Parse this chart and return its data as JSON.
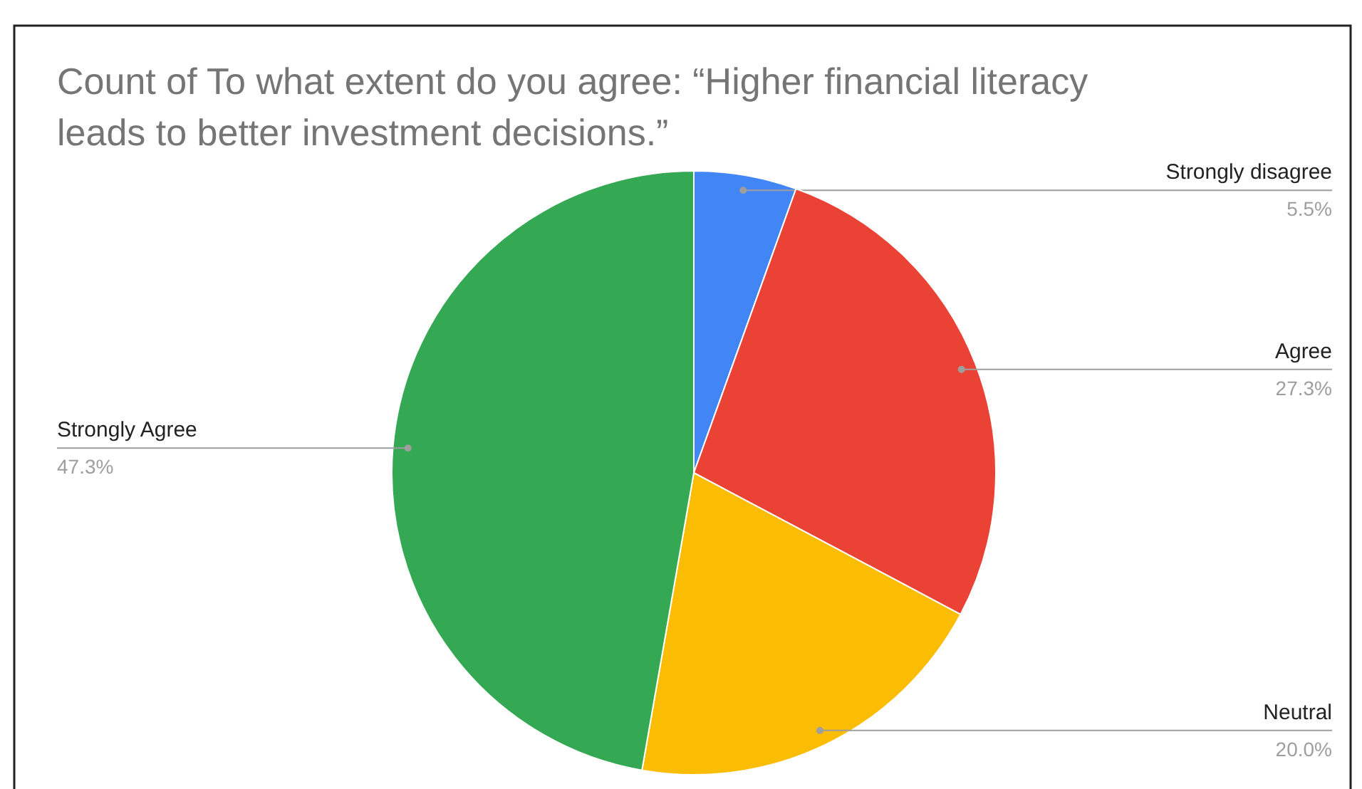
{
  "chart_data": {
    "type": "pie",
    "title": "Count of To what extent do you agree: “Higher financial literacy leads to better investment decisions.”",
    "categories": [
      "Strongly disagree",
      "Agree",
      "Neutral",
      "Strongly Agree"
    ],
    "values": [
      5.5,
      27.3,
      20.0,
      47.3
    ],
    "value_labels": [
      "5.5%",
      "27.3%",
      "20.0%",
      "47.3%"
    ],
    "colors": [
      "#4285f4",
      "#ea4335",
      "#fbbc04",
      "#34a853"
    ]
  }
}
